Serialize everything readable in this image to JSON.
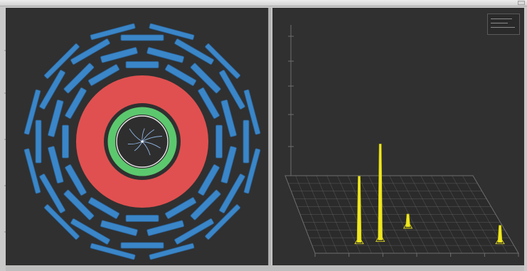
{
  "window": {
    "title": "",
    "app_label": ""
  },
  "colors": {
    "background": "#303030",
    "muon_chambers": "#3a86c8",
    "hcal": "#e05050",
    "ecal": "#5cc86e",
    "tracker_ring": "#e8e8e8",
    "energy_towers": "#f0e81e",
    "grid": "#6e6e6e"
  },
  "views": {
    "xy": {
      "name": "rphi-view"
    },
    "lego": {
      "name": "lego-view"
    }
  },
  "lego": {
    "tick_labels": [
      "",
      "",
      "",
      "",
      ""
    ],
    "towers": [
      {
        "eta_index": 0.24,
        "phi_index": 0.86,
        "energy": 0.62
      },
      {
        "eta_index": 0.35,
        "phi_index": 0.83,
        "energy": 0.9
      },
      {
        "eta_index": 0.52,
        "phi_index": 0.66,
        "energy": 0.12
      },
      {
        "eta_index": 0.94,
        "phi_index": 0.86,
        "energy": 0.16
      }
    ]
  },
  "tracks": [
    {
      "angle_deg": 15,
      "length": 0.85
    },
    {
      "angle_deg": 45,
      "length": 0.7
    },
    {
      "angle_deg": 80,
      "length": 0.55
    },
    {
      "angle_deg": 135,
      "length": 0.75
    },
    {
      "angle_deg": 190,
      "length": 0.6
    },
    {
      "angle_deg": 230,
      "length": 0.5
    },
    {
      "angle_deg": 300,
      "length": 0.65
    },
    {
      "angle_deg": 340,
      "length": 0.8
    }
  ]
}
